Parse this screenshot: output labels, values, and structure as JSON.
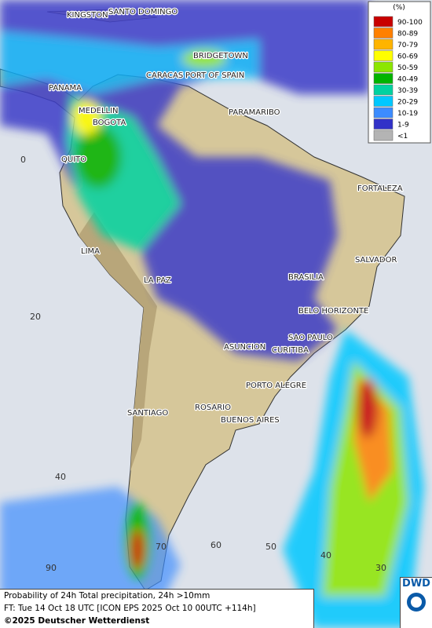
{
  "map": {
    "legend": {
      "title": "(%)",
      "items": [
        {
          "label": "90-100",
          "color": "#c80000"
        },
        {
          "label": "80-89",
          "color": "#ff8000"
        },
        {
          "label": "70-79",
          "color": "#ffb400"
        },
        {
          "label": "60-69",
          "color": "#ffff00"
        },
        {
          "label": "50-59",
          "color": "#8ce600"
        },
        {
          "label": "40-49",
          "color": "#00b400"
        },
        {
          "label": "30-39",
          "color": "#00d2a0"
        },
        {
          "label": "20-29",
          "color": "#00c8ff"
        },
        {
          "label": "10-19",
          "color": "#3c8cff"
        },
        {
          "label": "1-9",
          "color": "#3232c8"
        },
        {
          "label": "<1",
          "color": "#b4b4b4"
        }
      ]
    },
    "cities": [
      "KINGSTON",
      "SANTO DOMINGO",
      "BRIDGETOWN",
      "CARACAS",
      "PORT OF SPAIN",
      "PANAMA",
      "MEDELLIN",
      "BOGOTA",
      "PARAMARIBO",
      "QUITO",
      "FORTALEZA",
      "LIMA",
      "SALVADOR",
      "BRASILIA",
      "LA PAZ",
      "BELO HORIZONTE",
      "SAO PAULO",
      "ASUNCION",
      "CURITIBA",
      "PORTO ALEGRE",
      "ROSARIO",
      "SANTIAGO",
      "BUENOS AIRES"
    ],
    "latitudes": [
      "0",
      "20",
      "40"
    ],
    "longitudes": [
      "90",
      "70",
      "60",
      "50",
      "40",
      "30"
    ]
  },
  "caption": {
    "line1": "Probability of 24h Total precipitation, 24h >10mm",
    "line2": "FT: Tue 14 Oct 18 UTC [ICON EPS 2025 Oct 10 00UTC +114h]",
    "copyright": "©2025 Deutscher Wetterdienst"
  },
  "logo": "DWD"
}
